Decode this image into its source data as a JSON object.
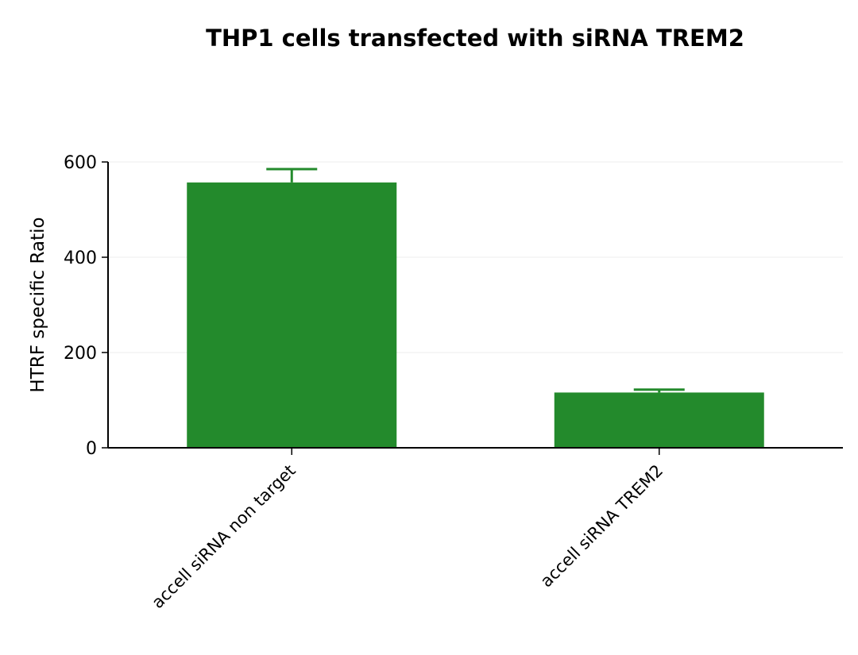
{
  "chart_data": {
    "type": "bar",
    "title": "THP1 cells transfected with siRNA TREM2",
    "xlabel": "",
    "ylabel": "HTRF specific Ratio",
    "categories": [
      "accell siRNA non target",
      "accell siRNA TREM2"
    ],
    "values": [
      557,
      116
    ],
    "error_upper": [
      585,
      122
    ],
    "ylim": [
      0,
      600
    ],
    "yticks": [
      0,
      200,
      400,
      600
    ],
    "ytick_labels": [
      "0",
      "200",
      "400",
      "600"
    ],
    "grid": true,
    "legend": "none",
    "bar_color": "#238a2c"
  }
}
